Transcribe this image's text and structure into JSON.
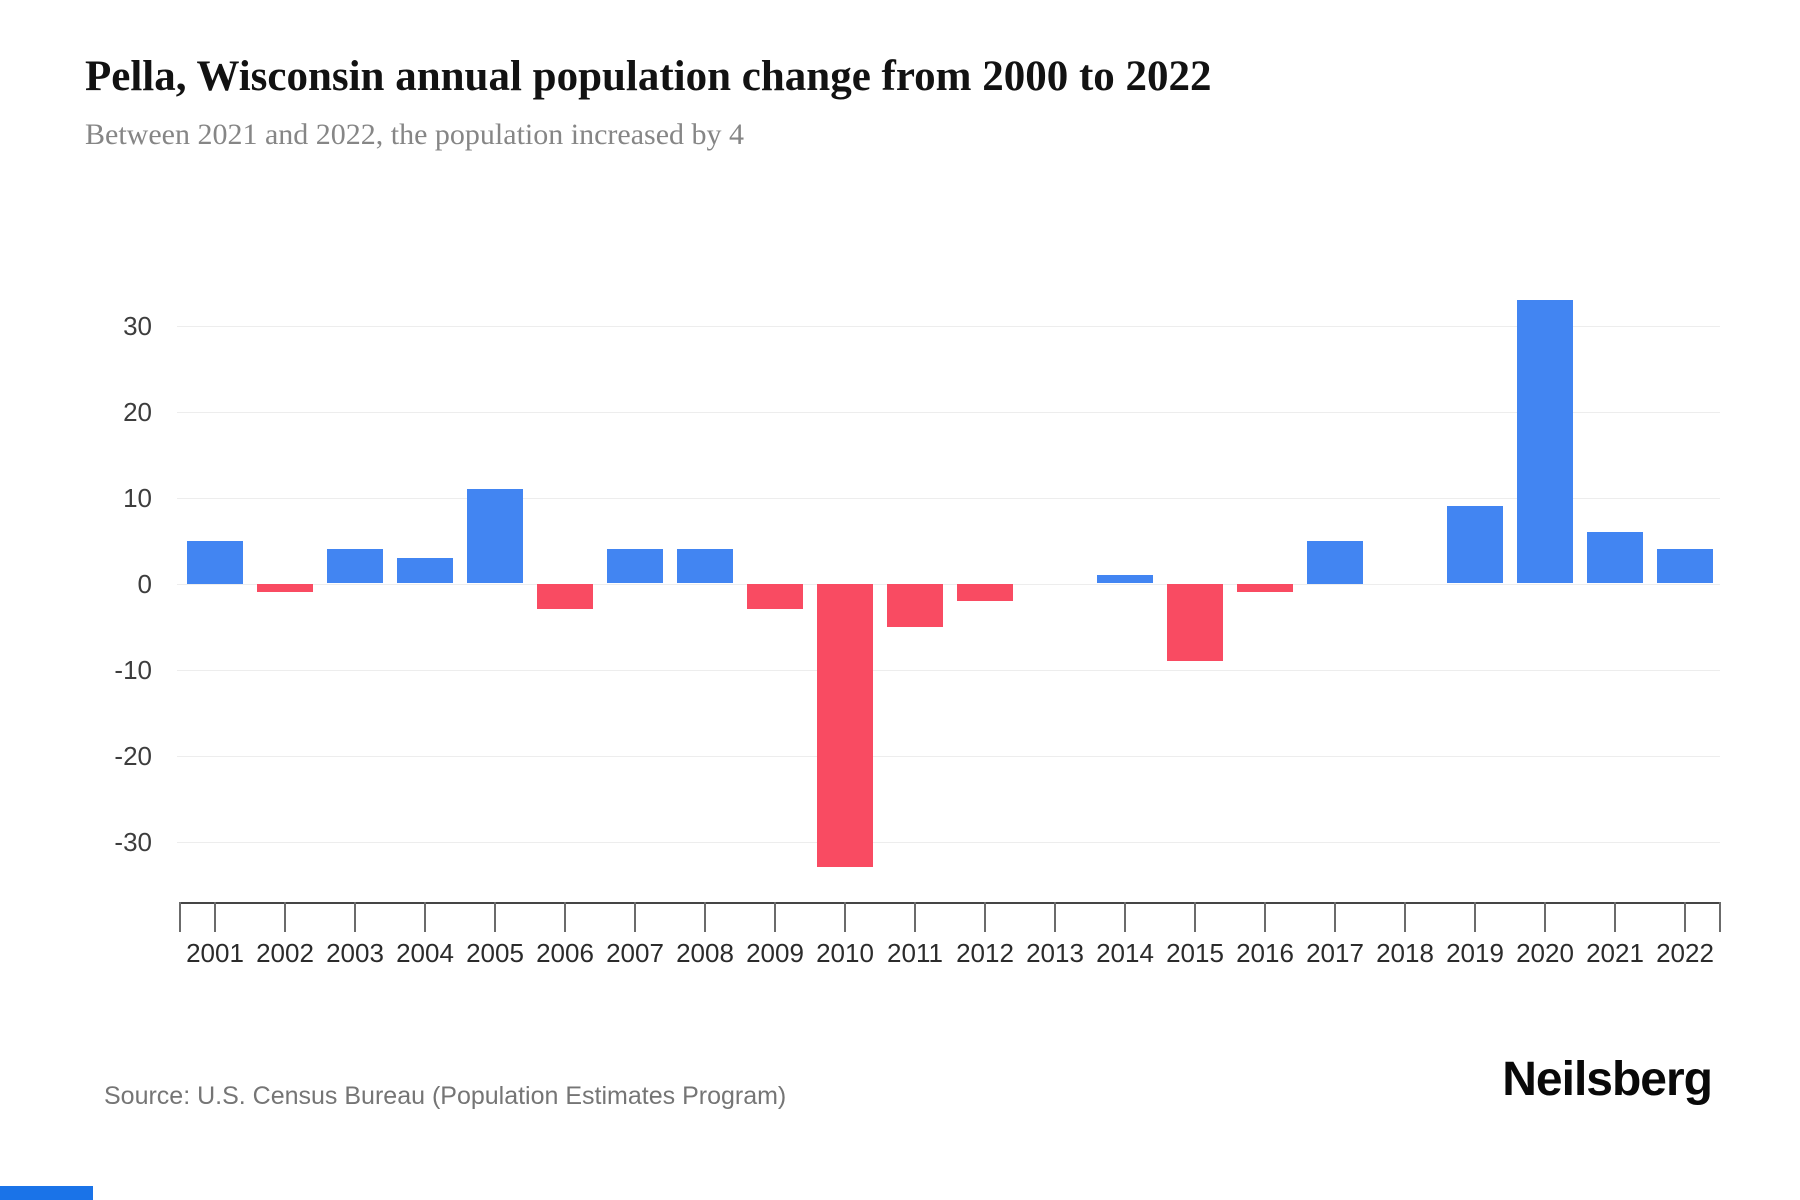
{
  "header": {
    "title": "Pella, Wisconsin annual population change from 2000 to 2022",
    "subtitle": "Between 2021 and 2022, the population increased by 4"
  },
  "footer": {
    "source": "Source: U.S. Census Bureau (Population Estimates Program)",
    "brand": "Neilsberg"
  },
  "chart_data": {
    "type": "bar",
    "title": "Pella, Wisconsin annual population change from 2000 to 2022",
    "subtitle": "Between 2021 and 2022, the population increased by 4",
    "categories": [
      "2001",
      "2002",
      "2003",
      "2004",
      "2005",
      "2006",
      "2007",
      "2008",
      "2009",
      "2010",
      "2011",
      "2012",
      "2013",
      "2014",
      "2015",
      "2016",
      "2017",
      "2018",
      "2019",
      "2020",
      "2021",
      "2022"
    ],
    "values": [
      5,
      -1,
      4,
      3,
      11,
      -3,
      4,
      4,
      -3,
      -33,
      -5,
      -2,
      0,
      1,
      -9,
      -1,
      5,
      0,
      9,
      33,
      6,
      4
    ],
    "xlabel": "",
    "ylabel": "",
    "ylim": [
      -35,
      35
    ],
    "yticks": [
      30,
      20,
      10,
      0,
      -10,
      -20,
      -30
    ],
    "grid": true,
    "legend": false,
    "colors": {
      "positive": "#4285F2",
      "negative": "#F94B62"
    }
  },
  "decor": {
    "corner_strip_color": "#1a73e8"
  }
}
